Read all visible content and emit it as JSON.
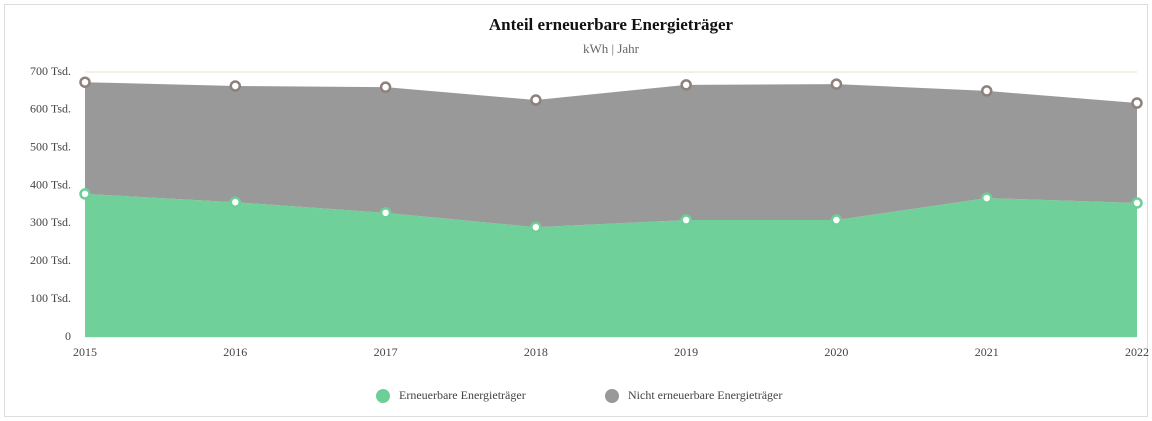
{
  "chart_data": {
    "type": "stacked_area",
    "title": "Anteil erneuerbare Energieträger",
    "subtitle": "kWh | Jahr",
    "categories": [
      "2015",
      "2016",
      "2017",
      "2018",
      "2019",
      "2020",
      "2021",
      "2022"
    ],
    "series": [
      {
        "name": "Erneuerbare Energieträger",
        "color": "#6dcf98",
        "values": [
          378000,
          356000,
          328000,
          290000,
          309000,
          309000,
          367000,
          354000
        ]
      },
      {
        "name": "Nicht erneuerbare Energieträger",
        "color": "#999999",
        "values": [
          295000,
          307000,
          332000,
          336000,
          357000,
          359000,
          283000,
          264000
        ]
      }
    ],
    "ylim": [
      0,
      700000
    ],
    "yticks": [
      0,
      {
        "value": 100000,
        "label": "100 Tsd."
      },
      {
        "value": 200000,
        "label": "200 Tsd."
      },
      {
        "value": 300000,
        "label": "300 Tsd."
      },
      {
        "value": 400000,
        "label": "400 Tsd."
      },
      {
        "value": 500000,
        "label": "500 Tsd."
      },
      {
        "value": 600000,
        "label": "600 Tsd."
      },
      {
        "value": 700000,
        "label": "700 Tsd."
      }
    ],
    "grid": true,
    "legend": "bottom"
  }
}
